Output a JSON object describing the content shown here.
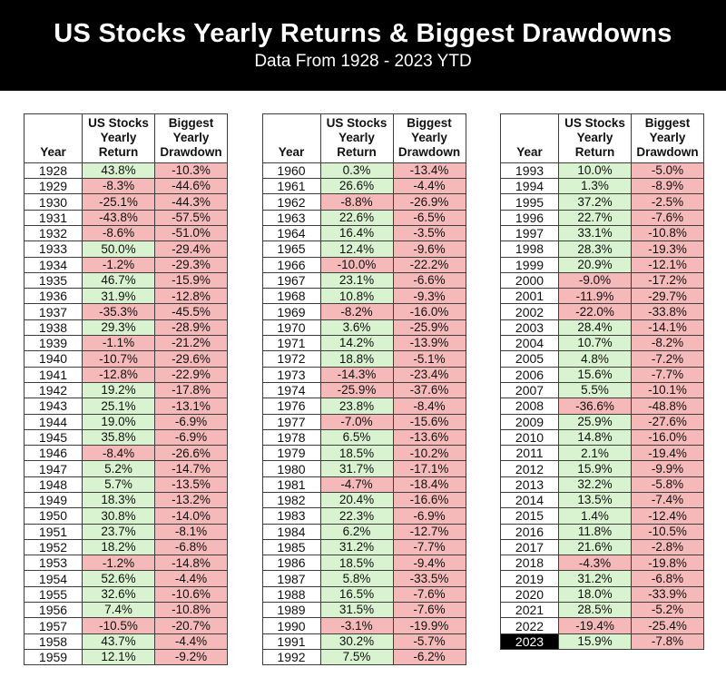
{
  "chart_data": {
    "type": "table",
    "title": "US Stocks Yearly Returns & Biggest Drawdowns",
    "subtitle": "Data From 1928 - 2023 YTD",
    "columns": [
      "Year",
      "US Stocks\nYearly\nReturn",
      "Biggest\nYearly\nDrawdown"
    ],
    "highlight_year": "2023",
    "colors": {
      "positive_bg": "#d9f2d0",
      "negative_bg": "#f5b9b9",
      "header_bg": "#000000",
      "header_text": "#ffffff",
      "highlight_bg": "#000000",
      "highlight_text": "#ffffff"
    },
    "tables": [
      {
        "name": "years-1928-1959",
        "rows": [
          [
            "1928",
            "43.8%",
            "-10.3%"
          ],
          [
            "1929",
            "-8.3%",
            "-44.6%"
          ],
          [
            "1930",
            "-25.1%",
            "-44.3%"
          ],
          [
            "1931",
            "-43.8%",
            "-57.5%"
          ],
          [
            "1932",
            "-8.6%",
            "-51.0%"
          ],
          [
            "1933",
            "50.0%",
            "-29.4%"
          ],
          [
            "1934",
            "-1.2%",
            "-29.3%"
          ],
          [
            "1935",
            "46.7%",
            "-15.9%"
          ],
          [
            "1936",
            "31.9%",
            "-12.8%"
          ],
          [
            "1937",
            "-35.3%",
            "-45.5%"
          ],
          [
            "1938",
            "29.3%",
            "-28.9%"
          ],
          [
            "1939",
            "-1.1%",
            "-21.2%"
          ],
          [
            "1940",
            "-10.7%",
            "-29.6%"
          ],
          [
            "1941",
            "-12.8%",
            "-22.9%"
          ],
          [
            "1942",
            "19.2%",
            "-17.8%"
          ],
          [
            "1943",
            "25.1%",
            "-13.1%"
          ],
          [
            "1944",
            "19.0%",
            "-6.9%"
          ],
          [
            "1945",
            "35.8%",
            "-6.9%"
          ],
          [
            "1946",
            "-8.4%",
            "-26.6%"
          ],
          [
            "1947",
            "5.2%",
            "-14.7%"
          ],
          [
            "1948",
            "5.7%",
            "-13.5%"
          ],
          [
            "1949",
            "18.3%",
            "-13.2%"
          ],
          [
            "1950",
            "30.8%",
            "-14.0%"
          ],
          [
            "1951",
            "23.7%",
            "-8.1%"
          ],
          [
            "1952",
            "18.2%",
            "-6.8%"
          ],
          [
            "1953",
            "-1.2%",
            "-14.8%"
          ],
          [
            "1954",
            "52.6%",
            "-4.4%"
          ],
          [
            "1955",
            "32.6%",
            "-10.6%"
          ],
          [
            "1956",
            "7.4%",
            "-10.8%"
          ],
          [
            "1957",
            "-10.5%",
            "-20.7%"
          ],
          [
            "1958",
            "43.7%",
            "-4.4%"
          ],
          [
            "1959",
            "12.1%",
            "-9.2%"
          ]
        ]
      },
      {
        "name": "years-1960-1992",
        "rows": [
          [
            "1960",
            "0.3%",
            "-13.4%"
          ],
          [
            "1961",
            "26.6%",
            "-4.4%"
          ],
          [
            "1962",
            "-8.8%",
            "-26.9%"
          ],
          [
            "1963",
            "22.6%",
            "-6.5%"
          ],
          [
            "1964",
            "16.4%",
            "-3.5%"
          ],
          [
            "1965",
            "12.4%",
            "-9.6%"
          ],
          [
            "1966",
            "-10.0%",
            "-22.2%"
          ],
          [
            "1967",
            "23.1%",
            "-6.6%"
          ],
          [
            "1968",
            "10.8%",
            "-9.3%"
          ],
          [
            "1969",
            "-8.2%",
            "-16.0%"
          ],
          [
            "1970",
            "3.6%",
            "-25.9%"
          ],
          [
            "1971",
            "14.2%",
            "-13.9%"
          ],
          [
            "1972",
            "18.8%",
            "-5.1%"
          ],
          [
            "1973",
            "-14.3%",
            "-23.4%"
          ],
          [
            "1974",
            "-25.9%",
            "-37.6%"
          ],
          [
            "1976",
            "23.8%",
            "-8.4%"
          ],
          [
            "1977",
            "-7.0%",
            "-15.6%"
          ],
          [
            "1978",
            "6.5%",
            "-13.6%"
          ],
          [
            "1979",
            "18.5%",
            "-10.2%"
          ],
          [
            "1980",
            "31.7%",
            "-17.1%"
          ],
          [
            "1981",
            "-4.7%",
            "-18.4%"
          ],
          [
            "1982",
            "20.4%",
            "-16.6%"
          ],
          [
            "1983",
            "22.3%",
            "-6.9%"
          ],
          [
            "1984",
            "6.2%",
            "-12.7%"
          ],
          [
            "1985",
            "31.2%",
            "-7.7%"
          ],
          [
            "1986",
            "18.5%",
            "-9.4%"
          ],
          [
            "1987",
            "5.8%",
            "-33.5%"
          ],
          [
            "1988",
            "16.5%",
            "-7.6%"
          ],
          [
            "1989",
            "31.5%",
            "-7.6%"
          ],
          [
            "1990",
            "-3.1%",
            "-19.9%"
          ],
          [
            "1991",
            "30.2%",
            "-5.7%"
          ],
          [
            "1992",
            "7.5%",
            "-6.2%"
          ]
        ]
      },
      {
        "name": "years-1993-2023",
        "rows": [
          [
            "1993",
            "10.0%",
            "-5.0%"
          ],
          [
            "1994",
            "1.3%",
            "-8.9%"
          ],
          [
            "1995",
            "37.2%",
            "-2.5%"
          ],
          [
            "1996",
            "22.7%",
            "-7.6%"
          ],
          [
            "1997",
            "33.1%",
            "-10.8%"
          ],
          [
            "1998",
            "28.3%",
            "-19.3%"
          ],
          [
            "1999",
            "20.9%",
            "-12.1%"
          ],
          [
            "2000",
            "-9.0%",
            "-17.2%"
          ],
          [
            "2001",
            "-11.9%",
            "-29.7%"
          ],
          [
            "2002",
            "-22.0%",
            "-33.8%"
          ],
          [
            "2003",
            "28.4%",
            "-14.1%"
          ],
          [
            "2004",
            "10.7%",
            "-8.2%"
          ],
          [
            "2005",
            "4.8%",
            "-7.2%"
          ],
          [
            "2006",
            "15.6%",
            "-7.7%"
          ],
          [
            "2007",
            "5.5%",
            "-10.1%"
          ],
          [
            "2008",
            "-36.6%",
            "-48.8%"
          ],
          [
            "2009",
            "25.9%",
            "-27.6%"
          ],
          [
            "2010",
            "14.8%",
            "-16.0%"
          ],
          [
            "2011",
            "2.1%",
            "-19.4%"
          ],
          [
            "2012",
            "15.9%",
            "-9.9%"
          ],
          [
            "2013",
            "32.2%",
            "-5.8%"
          ],
          [
            "2014",
            "13.5%",
            "-7.4%"
          ],
          [
            "2015",
            "1.4%",
            "-12.4%"
          ],
          [
            "2016",
            "11.8%",
            "-10.5%"
          ],
          [
            "2017",
            "21.6%",
            "-2.8%"
          ],
          [
            "2018",
            "-4.3%",
            "-19.8%"
          ],
          [
            "2019",
            "31.2%",
            "-6.8%"
          ],
          [
            "2020",
            "18.0%",
            "-33.9%"
          ],
          [
            "2021",
            "28.5%",
            "-5.2%"
          ],
          [
            "2022",
            "-19.4%",
            "-25.4%"
          ],
          [
            "2023",
            "15.9%",
            "-7.8%"
          ]
        ]
      }
    ]
  }
}
